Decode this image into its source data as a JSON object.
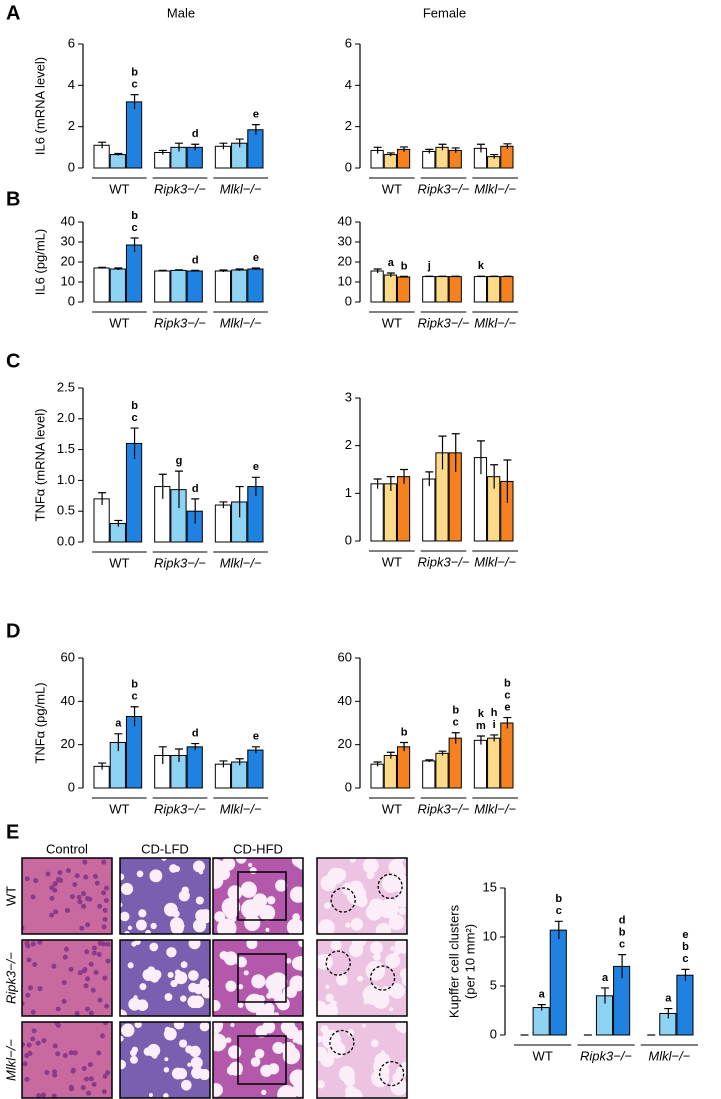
{
  "chart_data": [
    {
      "type": "bar",
      "panel": "A",
      "title": "Male",
      "ylabel": "IL6 (mRNA level)",
      "categories": [
        "WT",
        "Ripk3−/−",
        "Mlkl−/−"
      ],
      "colors": [
        "#ffffff",
        "#8fd3f4",
        "#1f82e0"
      ],
      "values": [
        [
          1.1,
          0.65,
          3.2
        ],
        [
          0.75,
          1.0,
          1.0
        ],
        [
          1.05,
          1.2,
          1.85
        ]
      ],
      "errors": [
        [
          0.15,
          0.05,
          0.35
        ],
        [
          0.1,
          0.2,
          0.15
        ],
        [
          0.15,
          0.2,
          0.25
        ]
      ],
      "annotations": [
        [
          [],
          [],
          [
            "b",
            "c"
          ]
        ],
        [
          [],
          [],
          [
            "d"
          ]
        ],
        [
          [],
          [],
          [
            "e"
          ]
        ]
      ],
      "ylim": [
        0,
        6
      ],
      "yticks": [
        0,
        2,
        4,
        6
      ]
    },
    {
      "type": "bar",
      "title": "Female",
      "categories": [
        "WT",
        "Ripk3−/−",
        "Mlkl−/−"
      ],
      "colors": [
        "#ffffff",
        "#fdd98a",
        "#f5821f"
      ],
      "values": [
        [
          0.85,
          0.65,
          0.9
        ],
        [
          0.8,
          1.0,
          0.85
        ],
        [
          0.95,
          0.55,
          1.05
        ]
      ],
      "errors": [
        [
          0.15,
          0.08,
          0.12
        ],
        [
          0.1,
          0.15,
          0.12
        ],
        [
          0.2,
          0.1,
          0.12
        ]
      ],
      "annotations": [
        [
          [],
          [],
          []
        ],
        [
          [],
          [],
          []
        ],
        [
          [],
          [],
          []
        ]
      ],
      "ylim": [
        0,
        6
      ],
      "yticks": [
        0,
        2,
        4,
        6
      ]
    },
    {
      "type": "bar",
      "panel": "B",
      "ylabel": "IL6 (pg/mL)",
      "categories": [
        "WT",
        "Ripk3−/−",
        "Mlkl−/−"
      ],
      "colors": [
        "#ffffff",
        "#8fd3f4",
        "#1f82e0"
      ],
      "values": [
        [
          17,
          16.5,
          28.5
        ],
        [
          15.5,
          15.8,
          15.5
        ],
        [
          15.5,
          16,
          16.5
        ]
      ],
      "errors": [
        [
          0.3,
          0.5,
          3.5
        ],
        [
          0.3,
          0.3,
          0.3
        ],
        [
          0.5,
          0.5,
          0.5
        ]
      ],
      "annotations": [
        [
          [],
          [],
          [
            "b",
            "c"
          ]
        ],
        [
          [],
          [],
          [
            "d"
          ]
        ],
        [
          [],
          [],
          [
            "e"
          ]
        ]
      ],
      "ylim": [
        0,
        40
      ],
      "yticks": [
        0,
        10,
        20,
        30,
        40
      ]
    },
    {
      "type": "bar",
      "categories": [
        "WT",
        "Ripk3−/−",
        "Mlkl−/−"
      ],
      "colors": [
        "#ffffff",
        "#fdd98a",
        "#f5821f"
      ],
      "values": [
        [
          15.5,
          13.5,
          12.5
        ],
        [
          12.7,
          12.7,
          12.7
        ],
        [
          12.7,
          12.7,
          12.7
        ]
      ],
      "errors": [
        [
          1,
          1,
          0.3
        ],
        [
          0.2,
          0.2,
          0.2
        ],
        [
          0.2,
          0.2,
          0.2
        ]
      ],
      "annotations": [
        [
          [],
          [
            "a"
          ],
          [
            "b"
          ]
        ],
        [
          [
            "j"
          ],
          [],
          []
        ],
        [
          [
            "k"
          ],
          [],
          []
        ]
      ],
      "ylim": [
        0,
        40
      ],
      "yticks": [
        0,
        10,
        20,
        30,
        40
      ]
    },
    {
      "type": "bar",
      "panel": "C",
      "ylabel": "TNFα (mRNA level)",
      "categories": [
        "WT",
        "Ripk3−/−",
        "Mlkl−/−"
      ],
      "colors": [
        "#ffffff",
        "#8fd3f4",
        "#1f82e0"
      ],
      "values": [
        [
          0.7,
          0.3,
          1.6
        ],
        [
          0.9,
          0.85,
          0.5
        ],
        [
          0.6,
          0.65,
          0.9
        ]
      ],
      "errors": [
        [
          0.1,
          0.05,
          0.25
        ],
        [
          0.2,
          0.3,
          0.2
        ],
        [
          0.05,
          0.25,
          0.15
        ]
      ],
      "annotations": [
        [
          [],
          [],
          [
            "b",
            "c"
          ]
        ],
        [
          [],
          [
            "g"
          ],
          [
            "d"
          ]
        ],
        [
          [],
          [],
          [
            "e"
          ]
        ]
      ],
      "ylim": [
        0,
        2.5
      ],
      "yticks": [
        {
          "value": 0,
          "label": "0.0"
        },
        0.5,
        {
          "value": 1,
          "label": "1.0"
        },
        1.5,
        {
          "value": 2,
          "label": "2.0"
        },
        2.5
      ]
    },
    {
      "type": "bar",
      "categories": [
        "WT",
        "Ripk3−/−",
        "Mlkl−/−"
      ],
      "colors": [
        "#ffffff",
        "#fdd98a",
        "#f5821f"
      ],
      "values": [
        [
          1.2,
          1.2,
          1.35
        ],
        [
          1.3,
          1.85,
          1.85
        ],
        [
          1.75,
          1.35,
          1.25
        ]
      ],
      "errors": [
        [
          0.1,
          0.15,
          0.15
        ],
        [
          0.15,
          0.35,
          0.4
        ],
        [
          0.35,
          0.25,
          0.45
        ]
      ],
      "annotations": [
        [
          [],
          [],
          []
        ],
        [
          [],
          [],
          []
        ],
        [
          [],
          [],
          []
        ]
      ],
      "ylim": [
        0,
        3
      ],
      "yticks": [
        0,
        1,
        2,
        3
      ]
    },
    {
      "type": "bar",
      "panel": "D",
      "ylabel": "TNFα (pg/mL)",
      "categories": [
        "WT",
        "Ripk3−/−",
        "Mlkl−/−"
      ],
      "colors": [
        "#ffffff",
        "#8fd3f4",
        "#1f82e0"
      ],
      "values": [
        [
          10,
          21,
          33
        ],
        [
          15,
          15,
          19
        ],
        [
          11,
          12,
          17.5
        ]
      ],
      "errors": [
        [
          1.5,
          4,
          4.5
        ],
        [
          4,
          3,
          1.5
        ],
        [
          1.5,
          1.5,
          1.5
        ]
      ],
      "annotations": [
        [
          [],
          [
            "a"
          ],
          [
            "b",
            "c"
          ]
        ],
        [
          [],
          [],
          [
            "d"
          ]
        ],
        [
          [],
          [],
          [
            "e"
          ]
        ]
      ],
      "ylim": [
        0,
        60
      ],
      "yticks": [
        0,
        20,
        40,
        60
      ]
    },
    {
      "type": "bar",
      "categories": [
        "WT",
        "Ripk3−/−",
        "Mlkl−/−"
      ],
      "colors": [
        "#ffffff",
        "#fdd98a",
        "#f5821f"
      ],
      "values": [
        [
          11,
          15,
          19
        ],
        [
          12.5,
          16,
          23
        ],
        [
          22,
          23,
          30
        ]
      ],
      "errors": [
        [
          1,
          1.5,
          2
        ],
        [
          0.5,
          1,
          2.5
        ],
        [
          2,
          1.5,
          2.5
        ]
      ],
      "annotations": [
        [
          [],
          [],
          [
            "b"
          ]
        ],
        [
          [],
          [],
          [
            "b",
            "c"
          ]
        ],
        [
          [
            "k",
            "m"
          ],
          [
            "h",
            "i"
          ],
          [
            "b",
            "c",
            "e"
          ]
        ]
      ],
      "ylim": [
        0,
        60
      ],
      "yticks": [
        0,
        20,
        40,
        60
      ]
    },
    {
      "type": "bar",
      "ylabel": [
        "Kupffer cell clusters",
        "(per 10 mm²)"
      ],
      "categories": [
        "WT",
        "Ripk3−/−",
        "Mlkl−/−"
      ],
      "colors": [
        "#ffffff",
        "#8fd3f4",
        "#1f82e0"
      ],
      "values": [
        [
          0,
          2.8,
          10.7
        ],
        [
          0,
          4,
          7
        ],
        [
          0,
          2.2,
          6.1
        ]
      ],
      "errors": [
        [
          0,
          0.3,
          0.9
        ],
        [
          0,
          0.8,
          1.2
        ],
        [
          0,
          0.5,
          0.6
        ]
      ],
      "annotations": [
        [
          [],
          [
            "a"
          ],
          [
            "b",
            "c"
          ]
        ],
        [
          [],
          [
            "a"
          ],
          [
            "d",
            "b",
            "c"
          ]
        ],
        [
          [],
          [
            "a"
          ],
          [
            "e",
            "b",
            "c"
          ]
        ]
      ],
      "ylim": [
        0,
        15
      ],
      "yticks": [
        0,
        5,
        10,
        15
      ]
    }
  ],
  "histology": {
    "panel": "E",
    "columns": [
      "Control",
      "CD-LFD",
      "CD-HFD"
    ],
    "rows": [
      "WT",
      "Ripk3−/−",
      "Mlkl−/−"
    ]
  }
}
